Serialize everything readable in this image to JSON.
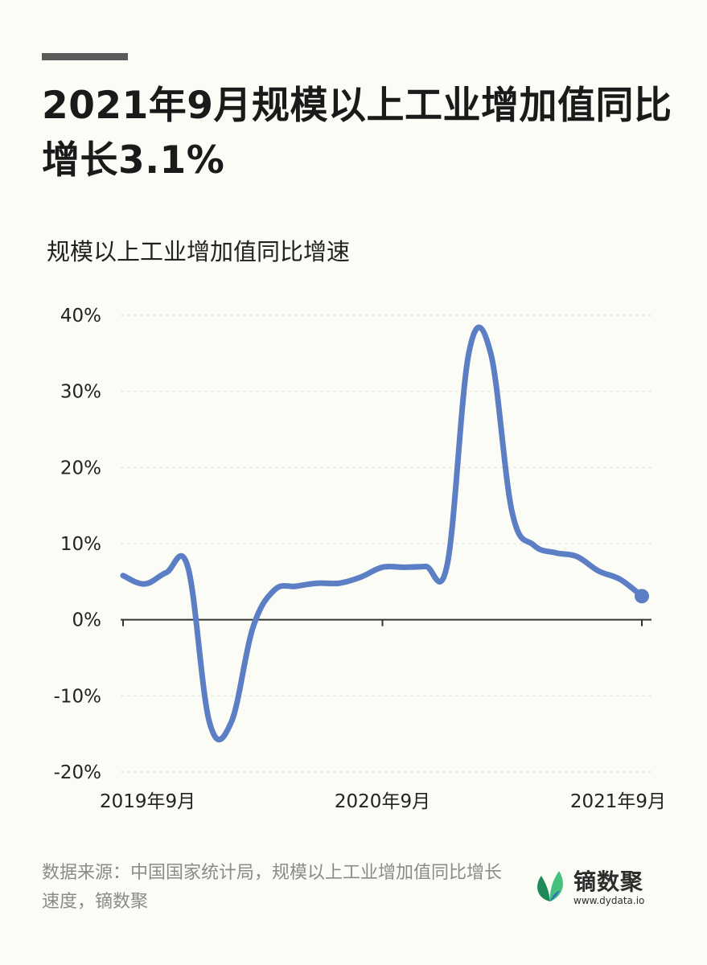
{
  "header": {
    "title": "2021年9月规模以上工业增加值同比增长3.1%",
    "subtitle": "规模以上工业增加值同比增速"
  },
  "footer": {
    "source": "数据来源：中国国家统计局，规模以上工业增加值同比增长速度，镝数聚",
    "brand_name": "镝数聚",
    "brand_url": "www.dydata.io",
    "brand_icon": "leaf-icon"
  },
  "colors": {
    "line": "#5b7ec5",
    "background": "#fcfcf6",
    "grid": "#e0e0d8",
    "axis": "#333333",
    "brand_green_dark": "#1f8a58",
    "brand_green_light": "#45c07d",
    "brand_blue": "#2e6fb8"
  },
  "chart_data": {
    "type": "line",
    "title": "规模以上工业增加值同比增速",
    "x": [
      "2019-09",
      "2019-10",
      "2019-11",
      "2019-12",
      "2020-01",
      "2020-02",
      "2020-03",
      "2020-04",
      "2020-05",
      "2020-06",
      "2020-07",
      "2020-08",
      "2020-09",
      "2020-10",
      "2020-11",
      "2020-12",
      "2021-01",
      "2021-02",
      "2021-03",
      "2021-04",
      "2021-05",
      "2021-06",
      "2021-07",
      "2021-08",
      "2021-09"
    ],
    "series": [
      {
        "values": [
          5.8,
          4.7,
          6.2,
          6.9,
          -13.5,
          -13.5,
          -1.1,
          3.9,
          4.4,
          4.8,
          4.8,
          5.6,
          6.9,
          6.9,
          7.0,
          7.3,
          35.1,
          35.1,
          14.1,
          9.8,
          8.8,
          8.3,
          6.4,
          5.3,
          3.1
        ]
      }
    ],
    "x_tick_labels": [
      {
        "label": "2019年9月",
        "index": 0
      },
      {
        "label": "2020年9月",
        "index": 12
      },
      {
        "label": "2021年9月",
        "index": 24
      }
    ],
    "y_ticks": [
      {
        "value": 40,
        "label": "40%"
      },
      {
        "value": 30,
        "label": "30%"
      },
      {
        "value": 20,
        "label": "20%"
      },
      {
        "value": 10,
        "label": "10%"
      },
      {
        "value": 0,
        "label": "0%"
      },
      {
        "value": -10,
        "label": "-10%"
      },
      {
        "value": -20,
        "label": "-20%"
      }
    ],
    "ylim": [
      -20,
      40
    ],
    "xlabel": "",
    "ylabel": "",
    "grid": true,
    "last_point_marker": true
  }
}
